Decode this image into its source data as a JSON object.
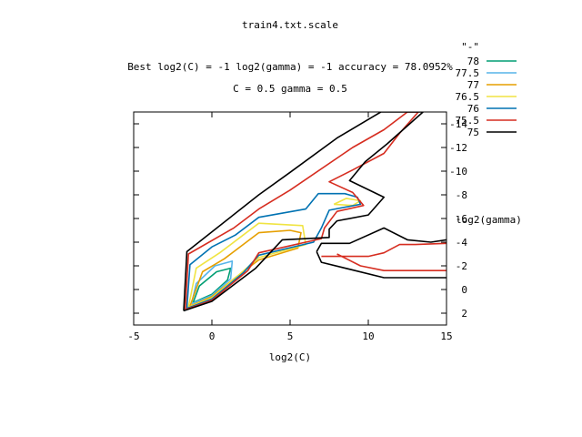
{
  "chart_data": {
    "type": "contour",
    "title": "train4.txt.scale",
    "subtitle_line1": "Best log2(C) = -1  log2(gamma) = -1  accuracy = 78.0952%",
    "subtitle_line2": "C = 0.5  gamma = 0.5",
    "xlabel": "log2(C)",
    "ylabel": "log2(gamma)",
    "xlim": [
      -5,
      15
    ],
    "ylim": [
      3,
      -15
    ],
    "x_ticks": [
      -5,
      0,
      5,
      10,
      15
    ],
    "y_ticks": [
      2,
      0,
      -2,
      -4,
      -6,
      -8,
      -10,
      -12,
      -14
    ],
    "grid": false,
    "legend_title": "\"-\"",
    "legend_position": "top-right",
    "series": [
      {
        "name": "78",
        "color": "#009e73",
        "paths": [
          [
            [
              -1.2,
              1.1
            ],
            [
              0,
              0.4
            ],
            [
              1,
              -0.8
            ],
            [
              1.2,
              -1.8
            ],
            [
              0.3,
              -1.5
            ],
            [
              -0.8,
              -0.3
            ],
            [
              -1.2,
              1.1
            ]
          ]
        ]
      },
      {
        "name": "77.5",
        "color": "#56b4e9",
        "paths": [
          [
            [
              -1.3,
              1.2
            ],
            [
              0,
              0.5
            ],
            [
              1.2,
              -0.9
            ],
            [
              1.3,
              -2.4
            ],
            [
              0.2,
              -2.0
            ],
            [
              -1.0,
              -0.5
            ],
            [
              -1.3,
              1.2
            ]
          ]
        ]
      },
      {
        "name": "77",
        "color": "#e69f00",
        "paths": [
          [
            [
              -1.4,
              1.4
            ],
            [
              0,
              0.6
            ],
            [
              1.5,
              -1.0
            ],
            [
              3,
              -2.5
            ],
            [
              5.5,
              -3.5
            ],
            [
              5.7,
              -4.8
            ],
            [
              5,
              -5.0
            ],
            [
              3,
              -4.8
            ],
            [
              2,
              -3.8
            ],
            [
              0.8,
              -2.6
            ],
            [
              -0.6,
              -1.5
            ],
            [
              -1.4,
              1.4
            ]
          ]
        ]
      },
      {
        "name": "76.5",
        "color": "#f0e442",
        "paths": [
          [
            [
              -1.5,
              1.5
            ],
            [
              0,
              0.7
            ],
            [
              1.7,
              -1.2
            ],
            [
              3,
              -2.7
            ],
            [
              6,
              -3.8
            ],
            [
              5.8,
              -5.4
            ],
            [
              3,
              -5.6
            ],
            [
              2,
              -4.6
            ],
            [
              0.5,
              -3.1
            ],
            [
              -1.0,
              -1.8
            ],
            [
              -1.5,
              1.5
            ]
          ],
          [
            [
              7.8,
              -7.2
            ],
            [
              8.6,
              -7.7
            ],
            [
              9.5,
              -7.5
            ],
            [
              9.0,
              -7.1
            ],
            [
              7.8,
              -7.2
            ]
          ]
        ]
      },
      {
        "name": "76",
        "color": "#0072b2",
        "paths": [
          [
            [
              -1.6,
              1.6
            ],
            [
              0,
              0.8
            ],
            [
              2,
              -1.4
            ],
            [
              3,
              -2.9
            ],
            [
              6.5,
              -4.0
            ],
            [
              7,
              -5.2
            ],
            [
              7.5,
              -6.7
            ],
            [
              9.5,
              -7.2
            ],
            [
              9.3,
              -7.8
            ],
            [
              8.5,
              -8.1
            ],
            [
              6.8,
              -8.1
            ],
            [
              6,
              -6.8
            ],
            [
              3,
              -6.1
            ],
            [
              1.5,
              -4.6
            ],
            [
              0,
              -3.6
            ],
            [
              -1.4,
              -2.1
            ],
            [
              -1.6,
              1.6
            ]
          ]
        ]
      },
      {
        "name": "75.5",
        "color": "#d62d20",
        "paths": [
          [
            [
              -1.7,
              1.7
            ],
            [
              0,
              0.9
            ],
            [
              2.3,
              -1.6
            ],
            [
              3,
              -3.1
            ],
            [
              7,
              -4.3
            ],
            [
              7.2,
              -5.2
            ],
            [
              8,
              -6.6
            ],
            [
              9.7,
              -7.1
            ],
            [
              9,
              -8.2
            ],
            [
              7.5,
              -9.1
            ],
            [
              9,
              -10.1
            ],
            [
              11,
              -11.5
            ],
            [
              12,
              -13.2
            ],
            [
              13.2,
              -15
            ],
            [
              12.5,
              -15
            ],
            [
              11,
              -13.5
            ],
            [
              9,
              -12
            ],
            [
              5,
              -8.4
            ],
            [
              3,
              -6.8
            ],
            [
              1.4,
              -5.2
            ],
            [
              -1.5,
              -3.0
            ],
            [
              -1.7,
              1.7
            ]
          ],
          [
            [
              7,
              -2.8
            ],
            [
              10,
              -2.8
            ],
            [
              11,
              -3.1
            ],
            [
              12,
              -3.8
            ],
            [
              13,
              -3.8
            ],
            [
              15,
              -3.9
            ]
          ],
          [
            [
              8,
              -3.0
            ],
            [
              9.5,
              -2.0
            ],
            [
              11,
              -1.6
            ],
            [
              15,
              -1.6
            ]
          ]
        ]
      },
      {
        "name": "75",
        "color": "#000000",
        "paths": [
          [
            [
              -1.8,
              1.8
            ],
            [
              0,
              1.0
            ],
            [
              2.8,
              -1.8
            ],
            [
              4.5,
              -4.2
            ],
            [
              7.5,
              -4.4
            ],
            [
              7.5,
              -5.1
            ],
            [
              8,
              -5.8
            ],
            [
              10,
              -6.3
            ],
            [
              11,
              -7.8
            ],
            [
              8.8,
              -9.2
            ],
            [
              9.8,
              -10.8
            ],
            [
              11.2,
              -12.3
            ],
            [
              13.5,
              -15
            ],
            [
              10.8,
              -15
            ],
            [
              8,
              -12.8
            ],
            [
              5,
              -9.9
            ],
            [
              3,
              -8.0
            ],
            [
              -1.6,
              -3.2
            ],
            [
              -1.8,
              1.8
            ]
          ],
          [
            [
              6.7,
              -3.2
            ],
            [
              7,
              -3.9
            ],
            [
              8.8,
              -3.9
            ],
            [
              11,
              -5.2
            ],
            [
              12.5,
              -4.2
            ],
            [
              14,
              -4.0
            ],
            [
              15,
              -4.2
            ]
          ],
          [
            [
              6.7,
              -3.2
            ],
            [
              7,
              -2.3
            ],
            [
              11,
              -1.0
            ],
            [
              15,
              -1.0
            ]
          ]
        ]
      }
    ]
  }
}
